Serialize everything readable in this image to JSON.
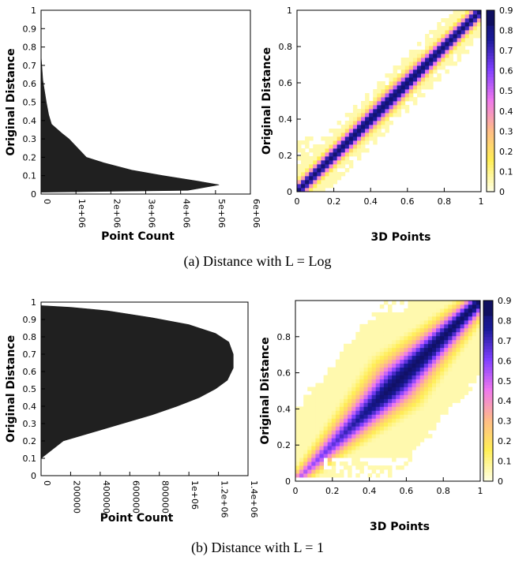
{
  "captions": {
    "a": "(a) Distance with L = Log",
    "b": "(b) Distance with L = 1"
  },
  "chart_data": [
    {
      "id": "a-hist",
      "type": "area",
      "xlabel": "Point Count",
      "ylabel": "Original Distance",
      "xlim": [
        0,
        6000000
      ],
      "ylim": [
        0,
        1
      ],
      "xticks": [
        "0",
        "1e+06",
        "2e+06",
        "3e+06",
        "4e+06",
        "5e+06",
        "6e+06"
      ],
      "yticks": [
        "0",
        "0.1",
        "0.2",
        "0.3",
        "0.4",
        "0.5",
        "0.6",
        "0.7",
        "0.8",
        "0.9",
        "1"
      ],
      "grid": false,
      "x": [
        0,
        4200000,
        5100000,
        4500000,
        3500000,
        2600000,
        1800000,
        1300000,
        1100000,
        800000,
        600000,
        300000,
        220000,
        150000,
        100000,
        50000,
        20000,
        0
      ],
      "y": [
        0.01,
        0.02,
        0.05,
        0.07,
        0.1,
        0.13,
        0.17,
        0.2,
        0.24,
        0.3,
        0.33,
        0.38,
        0.43,
        0.5,
        0.56,
        0.62,
        0.7,
        0.75
      ]
    },
    {
      "id": "a-heat",
      "type": "heatmap",
      "xlabel": "3D Points",
      "ylabel": "Original Distance",
      "xlim": [
        0,
        1
      ],
      "ylim": [
        0,
        1
      ],
      "xticks": [
        "0",
        "0.2",
        "0.4",
        "0.6",
        "0.8",
        "1"
      ],
      "yticks": [
        "0",
        "0.2",
        "0.4",
        "0.6",
        "0.8",
        "1"
      ],
      "colorbar_ticks": [
        "0",
        "0.1",
        "0.2",
        "0.3",
        "0.4",
        "0.5",
        "0.6",
        "0.7",
        "0.8",
        "0.9"
      ],
      "colormap": [
        "#ffffe0",
        "#ffee55",
        "#ffbb88",
        "#ee77ee",
        "#7f3fff",
        "#1a1a99",
        "#101060"
      ],
      "pattern": "narrow diagonal band concentrated along y = x"
    },
    {
      "id": "b-hist",
      "type": "area",
      "xlabel": "Point Count",
      "ylabel": "Original Distance",
      "xlim": [
        0,
        1400000
      ],
      "ylim": [
        0,
        1
      ],
      "xticks": [
        "0",
        "200000",
        "400000",
        "600000",
        "800000",
        "1e+06",
        "1.2e+06",
        "1.4e+06"
      ],
      "yticks": [
        "0",
        "0.1",
        "0.2",
        "0.3",
        "0.4",
        "0.5",
        "0.6",
        "0.7",
        "0.8",
        "0.9",
        "1"
      ],
      "grid": false,
      "x": [
        0,
        30000,
        150000,
        350000,
        550000,
        750000,
        920000,
        1070000,
        1180000,
        1260000,
        1300000,
        1300000,
        1270000,
        1180000,
        1000000,
        750000,
        450000,
        200000,
        0
      ],
      "y": [
        0.1,
        0.12,
        0.2,
        0.25,
        0.3,
        0.35,
        0.4,
        0.45,
        0.5,
        0.55,
        0.62,
        0.7,
        0.77,
        0.82,
        0.87,
        0.91,
        0.95,
        0.97,
        0.98
      ]
    },
    {
      "id": "b-heat",
      "type": "heatmap",
      "xlabel": "3D Points",
      "ylabel": "Original Distance",
      "xlim": [
        0,
        1
      ],
      "ylim": [
        0,
        1
      ],
      "xticks": [
        "0",
        "0.2",
        "0.4",
        "0.6",
        "0.8",
        "1"
      ],
      "yticks": [
        "0",
        "0.2",
        "0.4",
        "0.6",
        "0.8"
      ],
      "colorbar_ticks": [
        "0",
        "0.1",
        "0.2",
        "0.3",
        "0.4",
        "0.5",
        "0.6",
        "0.7",
        "0.8",
        "0.9"
      ],
      "colormap": [
        "#ffffe0",
        "#ffee55",
        "#ffbb88",
        "#ee77ee",
        "#7f3fff",
        "#1a1a99",
        "#101060"
      ],
      "pattern": "wide band around y = x, densest at high values"
    }
  ]
}
